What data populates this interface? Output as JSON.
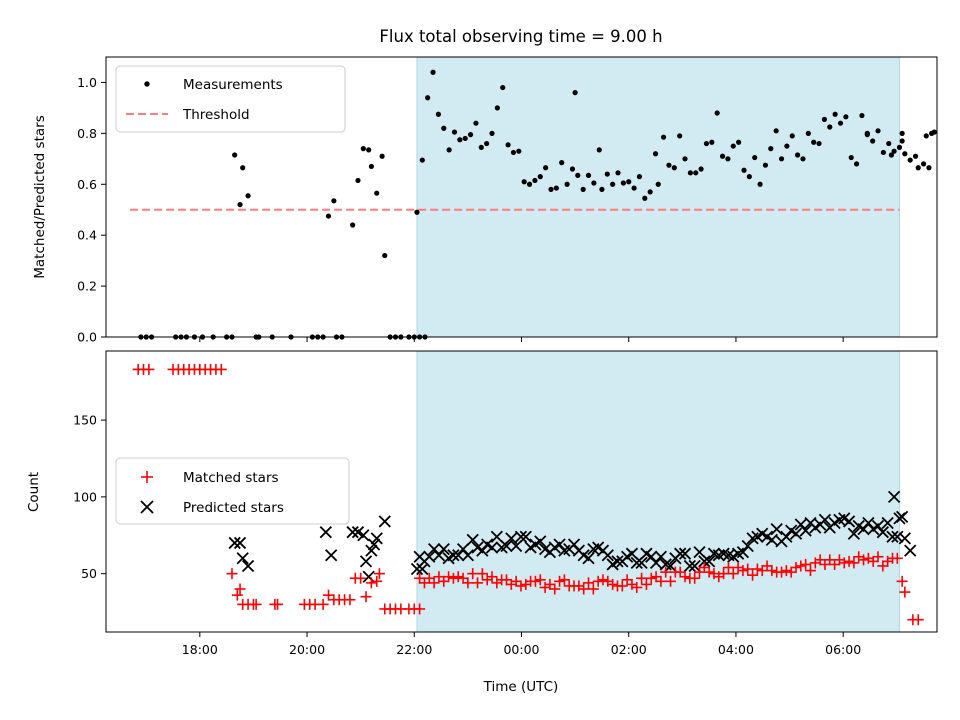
{
  "chart_data": {
    "type": "scatter",
    "title": "Flux total observing time = 9.00 h",
    "xlabel": "Time (UTC)",
    "x_unit": "hours since 00:00 UTC (ticks labeled as clock time)",
    "xlim": [
      -7.75,
      7.75
    ],
    "x_ticks": [
      {
        "x": -6,
        "label": "18:00"
      },
      {
        "x": -4,
        "label": "20:00"
      },
      {
        "x": -2,
        "label": "22:00"
      },
      {
        "x": 0,
        "label": "00:00"
      },
      {
        "x": 2,
        "label": "02:00"
      },
      {
        "x": 4,
        "label": "04:00"
      },
      {
        "x": 6,
        "label": "06:00"
      }
    ],
    "shaded_interval": {
      "x_start": -1.95,
      "x_end": 7.05,
      "color": "#add8e6"
    },
    "colors": {
      "measurements": "#000000",
      "threshold": "#ff7b7b",
      "matched": "#ff0000",
      "predicted": "#000000",
      "shade": "#add8e6"
    },
    "panels": [
      {
        "id": "top",
        "ylabel": "Matched/Predicted stars",
        "ylim": [
          0,
          1.1
        ],
        "y_ticks": [
          0,
          0.2,
          0.4,
          0.6,
          0.8,
          1.0
        ],
        "y_tick_labels": [
          "0.0",
          "0.2",
          "0.4",
          "0.6",
          "0.8",
          "1.0"
        ],
        "legend": {
          "position": "top-left",
          "entries": [
            {
              "label": "Measurements"
            },
            {
              "label": "Threshold"
            }
          ]
        },
        "threshold": {
          "y": 0.5,
          "x_start": -7.3,
          "x_end": 7.05
        },
        "measurements": [
          [
            -7.1,
            0
          ],
          [
            -7.0,
            0
          ],
          [
            -6.9,
            0
          ],
          [
            -6.45,
            0
          ],
          [
            -6.35,
            0
          ],
          [
            -6.25,
            0
          ],
          [
            -6.1,
            0
          ],
          [
            -5.95,
            0
          ],
          [
            -5.75,
            0
          ],
          [
            -5.5,
            0
          ],
          [
            -5.4,
            0
          ],
          [
            -5.35,
            0.715
          ],
          [
            -5.25,
            0.52
          ],
          [
            -5.2,
            0.665
          ],
          [
            -5.1,
            0.555
          ],
          [
            -4.95,
            0
          ],
          [
            -4.9,
            0
          ],
          [
            -4.65,
            0
          ],
          [
            -4.3,
            0
          ],
          [
            -3.9,
            0
          ],
          [
            -3.8,
            0
          ],
          [
            -3.7,
            0
          ],
          [
            -3.6,
            0.475
          ],
          [
            -3.5,
            0.535
          ],
          [
            -3.45,
            0
          ],
          [
            -3.35,
            0
          ],
          [
            -3.15,
            0.44
          ],
          [
            -3.05,
            0.615
          ],
          [
            -2.95,
            0.74
          ],
          [
            -2.85,
            0.735
          ],
          [
            -2.8,
            0.67
          ],
          [
            -2.7,
            0.565
          ],
          [
            -2.6,
            0.71
          ],
          [
            -2.55,
            0.32
          ],
          [
            -2.45,
            0
          ],
          [
            -2.35,
            0
          ],
          [
            -2.25,
            0
          ],
          [
            -2.1,
            0
          ],
          [
            -2.0,
            0
          ],
          [
            -1.9,
            0
          ],
          [
            -1.8,
            0
          ],
          [
            -1.95,
            0.49
          ],
          [
            -1.85,
            0.695
          ],
          [
            -1.75,
            0.94
          ],
          [
            -1.65,
            1.04
          ],
          [
            -1.55,
            0.875
          ],
          [
            -1.45,
            0.82
          ],
          [
            -1.35,
            0.735
          ],
          [
            -1.25,
            0.805
          ],
          [
            -1.15,
            0.775
          ],
          [
            -1.05,
            0.78
          ],
          [
            -0.95,
            0.795
          ],
          [
            -0.85,
            0.84
          ],
          [
            -0.75,
            0.745
          ],
          [
            -0.65,
            0.76
          ],
          [
            -0.55,
            0.8
          ],
          [
            -0.45,
            0.9
          ],
          [
            -0.35,
            0.98
          ],
          [
            -0.25,
            0.755
          ],
          [
            -0.15,
            0.725
          ],
          [
            -0.05,
            0.73
          ],
          [
            0.05,
            0.61
          ],
          [
            0.15,
            0.6
          ],
          [
            0.25,
            0.615
          ],
          [
            0.35,
            0.63
          ],
          [
            0.45,
            0.665
          ],
          [
            0.55,
            0.58
          ],
          [
            0.65,
            0.585
          ],
          [
            0.75,
            0.685
          ],
          [
            0.85,
            0.6
          ],
          [
            0.95,
            0.66
          ],
          [
            1.0,
            0.96
          ],
          [
            1.05,
            0.635
          ],
          [
            1.15,
            0.58
          ],
          [
            1.25,
            0.635
          ],
          [
            1.35,
            0.605
          ],
          [
            1.45,
            0.735
          ],
          [
            1.5,
            0.58
          ],
          [
            1.6,
            0.64
          ],
          [
            1.7,
            0.6
          ],
          [
            1.8,
            0.645
          ],
          [
            1.9,
            0.605
          ],
          [
            2.0,
            0.61
          ],
          [
            2.1,
            0.585
          ],
          [
            2.2,
            0.63
          ],
          [
            2.3,
            0.545
          ],
          [
            2.4,
            0.57
          ],
          [
            2.5,
            0.72
          ],
          [
            2.55,
            0.6
          ],
          [
            2.65,
            0.785
          ],
          [
            2.75,
            0.675
          ],
          [
            2.85,
            0.665
          ],
          [
            2.95,
            0.79
          ],
          [
            3.05,
            0.7
          ],
          [
            3.15,
            0.645
          ],
          [
            3.25,
            0.645
          ],
          [
            3.35,
            0.66
          ],
          [
            3.45,
            0.76
          ],
          [
            3.55,
            0.765
          ],
          [
            3.65,
            0.88
          ],
          [
            3.75,
            0.71
          ],
          [
            3.85,
            0.7
          ],
          [
            3.95,
            0.75
          ],
          [
            4.05,
            0.765
          ],
          [
            4.15,
            0.655
          ],
          [
            4.25,
            0.63
          ],
          [
            4.35,
            0.705
          ],
          [
            4.45,
            0.6
          ],
          [
            4.55,
            0.675
          ],
          [
            4.65,
            0.74
          ],
          [
            4.75,
            0.81
          ],
          [
            4.85,
            0.7
          ],
          [
            4.95,
            0.75
          ],
          [
            5.05,
            0.79
          ],
          [
            5.15,
            0.715
          ],
          [
            5.25,
            0.7
          ],
          [
            5.35,
            0.8
          ],
          [
            5.45,
            0.765
          ],
          [
            5.55,
            0.76
          ],
          [
            5.65,
            0.855
          ],
          [
            5.75,
            0.825
          ],
          [
            5.85,
            0.875
          ],
          [
            5.95,
            0.84
          ],
          [
            6.05,
            0.865
          ],
          [
            6.15,
            0.705
          ],
          [
            6.25,
            0.68
          ],
          [
            6.35,
            0.87
          ],
          [
            6.45,
            0.8
          ],
          [
            6.55,
            0.77
          ],
          [
            6.65,
            0.81
          ],
          [
            6.75,
            0.725
          ],
          [
            6.85,
            0.76
          ],
          [
            6.95,
            0.73
          ],
          [
            7.05,
            0.745
          ],
          [
            7.1,
            0.8
          ],
          [
            7.15,
            0.72
          ],
          [
            7.25,
            0.695
          ],
          [
            7.35,
            0.71
          ],
          [
            7.4,
            0.665
          ],
          [
            7.5,
            0.68
          ],
          [
            7.55,
            0.79
          ],
          [
            7.65,
            0.8
          ],
          [
            7.7,
            0.805
          ],
          [
            7.6,
            0.665
          ],
          [
            6.45,
            0.795
          ],
          [
            6.9,
            0.715
          ],
          [
            7.1,
            0.77
          ]
        ]
      },
      {
        "id": "bottom",
        "ylabel": "Count",
        "ylim": [
          12,
          195
        ],
        "y_ticks": [
          50,
          100,
          150
        ],
        "y_tick_labels": [
          "50",
          "100",
          "150"
        ],
        "legend": {
          "position": "center-left",
          "entries": [
            {
              "label": "Matched stars"
            },
            {
              "label": "Predicted stars"
            }
          ]
        },
        "matched_stars": [],
        "predicted_stars": []
      }
    ]
  }
}
